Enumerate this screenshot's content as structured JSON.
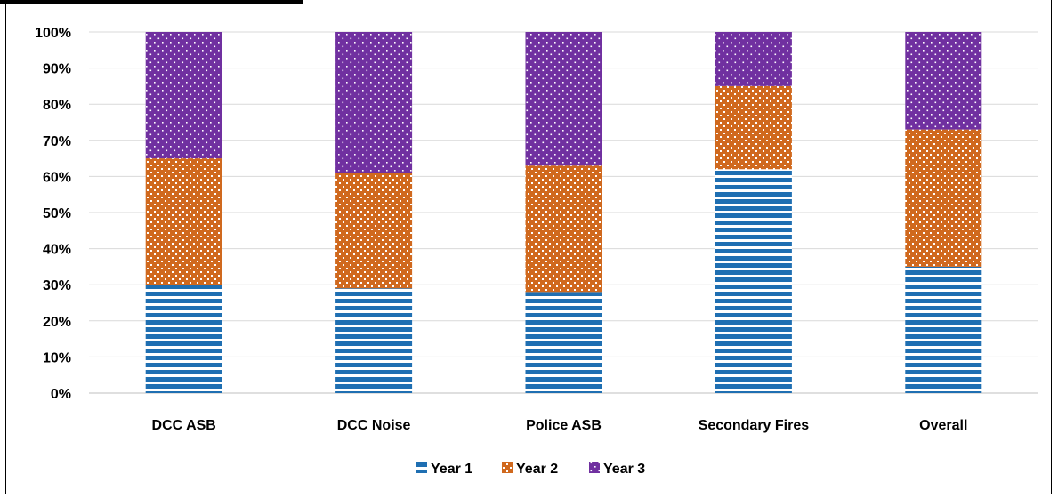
{
  "chart_data": {
    "type": "bar",
    "stacked": true,
    "normalized": true,
    "title": "",
    "xlabel": "",
    "ylabel": "",
    "ylim": [
      0,
      100
    ],
    "yticks": [
      "0%",
      "10%",
      "20%",
      "30%",
      "40%",
      "50%",
      "60%",
      "70%",
      "80%",
      "90%",
      "100%"
    ],
    "categories": [
      "DCC ASB",
      "DCC Noise",
      "Police ASB",
      "Secondary Fires",
      "Overall"
    ],
    "series": [
      {
        "name": "Year 1",
        "values": [
          30,
          29,
          28,
          62,
          35
        ],
        "color": "#1f6fb2",
        "pattern": "horizontal-stripes"
      },
      {
        "name": "Year 2",
        "values": [
          35,
          32,
          35,
          23,
          38
        ],
        "color": "#d0691e",
        "pattern": "weave"
      },
      {
        "name": "Year 3",
        "values": [
          35,
          39,
          37,
          15,
          27
        ],
        "color": "#7030a0",
        "pattern": "dots"
      }
    ],
    "grid": true,
    "legend": "bottom-center"
  }
}
